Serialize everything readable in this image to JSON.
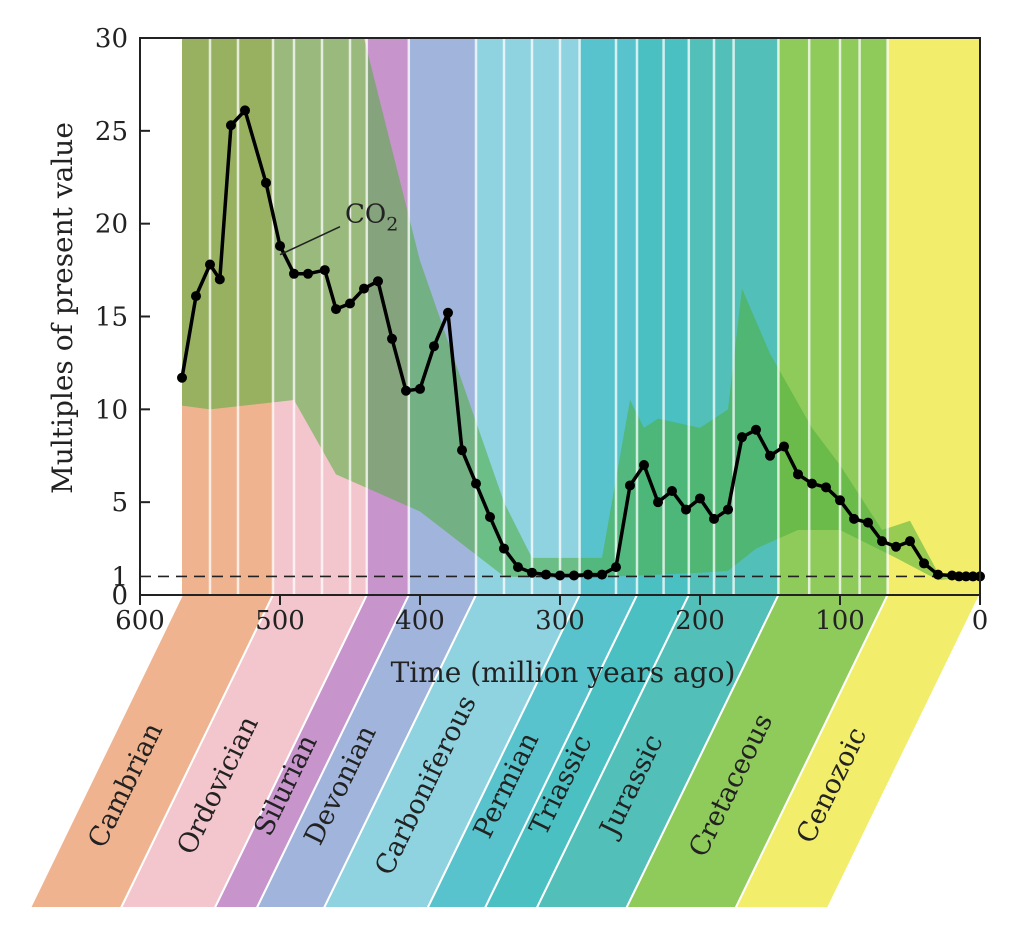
{
  "chart_data": {
    "type": "line",
    "title": "",
    "xlabel": "Time (million years ago)",
    "ylabel": "Multiples of present value",
    "xlim": [
      600,
      0
    ],
    "ylim": [
      0,
      30
    ],
    "x_ticks": [
      600,
      500,
      400,
      300,
      200,
      100,
      0
    ],
    "y_ticks": [
      0,
      1,
      5,
      10,
      15,
      20,
      25,
      30
    ],
    "reference_line": {
      "y": 1,
      "style": "dashed"
    },
    "annotation": {
      "text": "CO",
      "subscript": "2",
      "x": 500,
      "y": 19.3
    },
    "series": [
      {
        "name": "",
        "color": "#000000",
        "x": [
          570,
          560,
          550,
          543,
          535,
          525,
          510,
          500,
          490,
          480,
          468,
          460,
          450,
          440,
          430,
          420,
          410,
          400,
          390,
          380,
          370,
          360,
          350,
          340,
          330,
          320,
          310,
          300,
          290,
          280,
          270,
          260,
          250,
          240,
          230,
          220,
          210,
          200,
          190,
          180,
          170,
          160,
          150,
          140,
          130,
          120,
          110,
          100,
          90,
          80,
          70,
          60,
          50,
          40,
          30,
          20,
          15,
          10,
          5,
          0
        ],
        "y": [
          11.7,
          16.1,
          17.8,
          17.0,
          25.3,
          26.1,
          22.2,
          18.8,
          17.3,
          17.3,
          17.5,
          15.4,
          15.7,
          16.5,
          16.9,
          13.8,
          11.0,
          11.1,
          13.4,
          15.2,
          7.8,
          6.0,
          4.2,
          2.5,
          1.5,
          1.2,
          1.1,
          1.05,
          1.05,
          1.1,
          1.1,
          1.5,
          5.9,
          7.0,
          5.0,
          5.6,
          4.6,
          5.2,
          4.1,
          4.6,
          8.5,
          8.9,
          7.5,
          8.0,
          6.5,
          6.0,
          5.8,
          5.1,
          4.1,
          3.9,
          2.9,
          2.6,
          2.9,
          1.7,
          1.1,
          1.05,
          1.0,
          1.0,
          1.0,
          1.0
        ]
      }
    ],
    "periods": [
      {
        "name": "Cambrian",
        "start": 570,
        "end": 505,
        "color": "#efb48f"
      },
      {
        "name": "Ordovician",
        "start": 505,
        "end": 438,
        "color": "#f3c5cc"
      },
      {
        "name": "Silurian",
        "start": 438,
        "end": 408,
        "color": "#c794cc"
      },
      {
        "name": "Devonian",
        "start": 408,
        "end": 360,
        "color": "#a0b4dc"
      },
      {
        "name": "Carboniferous",
        "start": 360,
        "end": 286,
        "color": "#8fd2e0"
      },
      {
        "name": "Permian",
        "start": 286,
        "end": 245,
        "color": "#58c3cc"
      },
      {
        "name": "Triassic",
        "start": 245,
        "end": 208,
        "color": "#4bc0c2"
      },
      {
        "name": "Jurassic",
        "start": 208,
        "end": 144,
        "color": "#52bfb8"
      },
      {
        "name": "Cretaceous",
        "start": 144,
        "end": 66,
        "color": "#8fcb5b"
      },
      {
        "name": "Cenozoic",
        "start": 66,
        "end": 0,
        "color": "#f2ee6c"
      }
    ]
  }
}
